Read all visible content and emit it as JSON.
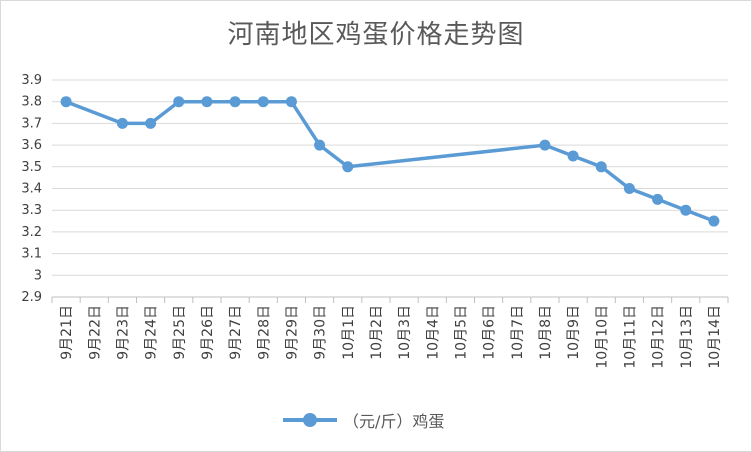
{
  "chart_data": {
    "type": "line",
    "title": "河南地区鸡蛋价格走势图",
    "xlabel": "",
    "ylabel": "",
    "categories": [
      "9月21日",
      "9月22日",
      "9月23日",
      "9月24日",
      "9月25日",
      "9月26日",
      "9月27日",
      "9月28日",
      "9月29日",
      "9月30日",
      "10月1日",
      "10月2日",
      "10月3日",
      "10月4日",
      "10月5日",
      "10月6日",
      "10月7日",
      "10月8日",
      "10月9日",
      "10月10日",
      "10月11日",
      "10月12日",
      "10月13日",
      "10月14日"
    ],
    "yticks": [
      "2.9",
      "3",
      "3.1",
      "3.2",
      "3.3",
      "3.4",
      "3.5",
      "3.6",
      "3.7",
      "3.8",
      "3.9"
    ],
    "ylim": [
      2.9,
      3.9
    ],
    "grid": true,
    "legend_position": "bottom",
    "series": [
      {
        "name": "（元/斤）鸡蛋",
        "color": "#5b9bd5",
        "values": [
          3.8,
          null,
          3.7,
          3.7,
          3.8,
          3.8,
          3.8,
          3.8,
          3.8,
          3.6,
          3.5,
          null,
          null,
          null,
          null,
          null,
          null,
          3.6,
          3.55,
          3.5,
          3.4,
          3.35,
          3.3,
          3.25
        ]
      }
    ]
  }
}
